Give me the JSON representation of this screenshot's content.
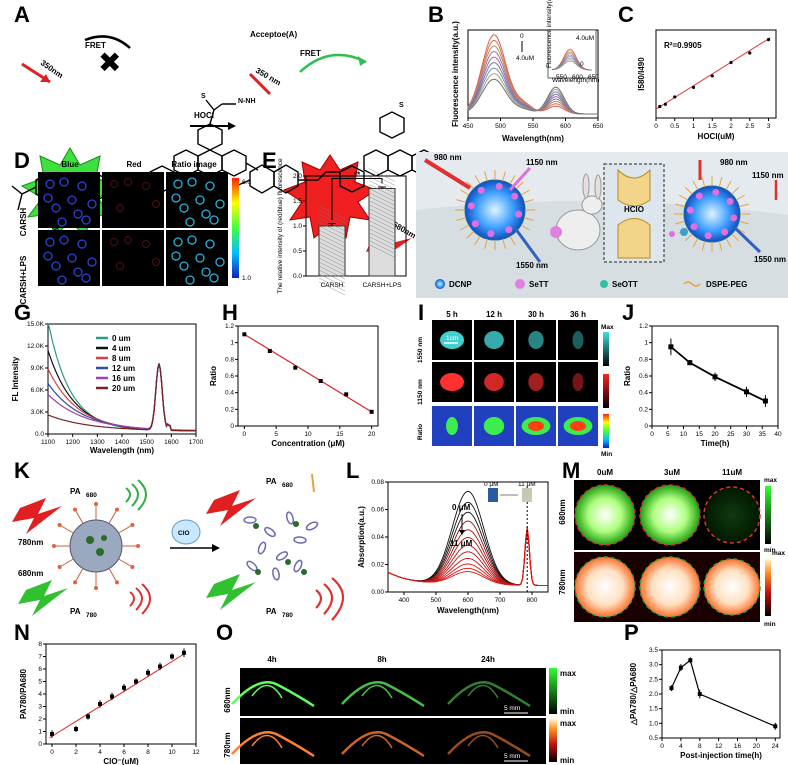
{
  "panel_labels": [
    "A",
    "B",
    "C",
    "D",
    "E",
    "F",
    "G",
    "H",
    "I",
    "J",
    "K",
    "L",
    "M",
    "N",
    "O",
    "P"
  ],
  "panelA": {
    "wl_350": "350nm",
    "fret": "FRET",
    "wl_490": "490nm",
    "hocl": "HOCl",
    "acceptor": "Acceptoe(A)",
    "wl_350b": "350 nm",
    "fret2": "FRET",
    "wl_580": "580nm"
  },
  "panelD": {
    "cols": [
      "Blue",
      "Red",
      "Ratio image"
    ],
    "rows": [
      "CARSH",
      "CARSH+LPS"
    ],
    "scale_max": "6.0",
    "scale_min": "1.0"
  },
  "panelF": {
    "wl980a": "980 nm",
    "wl1150a": "1150 nm",
    "wl1550a": "1550 nm",
    "hclo": "HClO",
    "wl980b": "980 nm",
    "wl1150b": "1150 nm",
    "wl1550b": "1550 nm",
    "legend": [
      "DCNP",
      "SeTT",
      "SeOTT",
      "DSPE-PEG"
    ]
  },
  "panelI": {
    "times": [
      "5 h",
      "12 h",
      "30 h",
      "36 h"
    ],
    "rows": [
      "1550 nm",
      "1150 nm",
      "Ratio"
    ],
    "scale": "1cm",
    "max": "Max",
    "min": "Min"
  },
  "panelK": {
    "pa680": "PA",
    "pa680sub": "680",
    "wl780": "780nm",
    "wl680": "680nm",
    "pa780": "PA",
    "pa780sub": "780",
    "clo": "ClO",
    "pa680b": "PA",
    "pa680bsub": "680",
    "pa780b": "PA",
    "pa780bsub": "780"
  },
  "panelM": {
    "cols": [
      "0uM",
      "3uM",
      "11uM"
    ],
    "rows": [
      "680nm",
      "780nm"
    ],
    "max": "max",
    "min": "min"
  },
  "panelO": {
    "cols": [
      "4h",
      "8h",
      "24h"
    ],
    "rows": [
      "680nm",
      "780nm"
    ],
    "scale": "5 mm",
    "max": "max",
    "min": "min"
  },
  "chart_data": [
    {
      "id": "B",
      "type": "line",
      "xlabel": "Wavelength(nm)",
      "ylabel": "Fluorescence intensity(a.u.)",
      "xlim": [
        450,
        650
      ],
      "xticks": [
        450,
        500,
        550,
        600,
        650
      ],
      "annot_top": "0",
      "annot_bottom": "4.0uM",
      "inset_top": "4.0uM",
      "inset_bottom": "0",
      "inset_ylabel": "Fluorescence intensity(a.u.)",
      "inset_xlabel": "Wavelength(nm)",
      "inset_xticks": [
        550,
        600,
        650
      ],
      "peaks": [
        1.0,
        0.93,
        0.86,
        0.79,
        0.72,
        0.65,
        0.58,
        0.51,
        0.44
      ],
      "colors": [
        "#e05a5a",
        "#d07a3a",
        "#b98a6a",
        "#8d7a9f",
        "#9d6b9a",
        "#7d6fa8",
        "#6f8fb0",
        "#a8a08a",
        "#6e6e6e"
      ]
    },
    {
      "id": "C",
      "type": "scatter",
      "xlabel": "HOCl(uM)",
      "ylabel": "I580/I490",
      "annotation": "R²=0.9905",
      "xlim": [
        0,
        3.2
      ],
      "ylim": [
        0.03,
        0.26
      ],
      "xticks": [
        0.0,
        0.5,
        1.0,
        1.5,
        2.0,
        2.5,
        3.0
      ],
      "x": [
        0.1,
        0.25,
        0.5,
        1.0,
        1.5,
        2.0,
        2.5,
        3.0
      ],
      "y": [
        0.06,
        0.066,
        0.085,
        0.11,
        0.14,
        0.175,
        0.2,
        0.235
      ]
    },
    {
      "id": "E",
      "type": "bar",
      "ylabel": "The relative intensity of (red/blue) fluorescence",
      "categories": [
        "CARSH",
        "CARSH+LPS"
      ],
      "values": [
        1.0,
        1.75
      ],
      "errors": [
        0.05,
        0.03
      ],
      "ylim": [
        0,
        2.0
      ],
      "yticks": [
        0.0,
        0.5,
        1.0,
        1.5,
        2.0
      ],
      "significance": "**"
    },
    {
      "id": "G",
      "type": "line",
      "xlabel": "Wavelength (nm)",
      "ylabel": "FL Intensity",
      "xlim": [
        1100,
        1700
      ],
      "xticks": [
        1100,
        1200,
        1300,
        1400,
        1500,
        1600,
        1700
      ],
      "ylim": [
        0,
        15000
      ],
      "yticks": [
        "0.0",
        "3.0K",
        "6.0K",
        "9.0K",
        "12.0K",
        "15.0K"
      ],
      "series": [
        {
          "name": "0 um",
          "color": "#2a9a8a",
          "start": 15000
        },
        {
          "name": "4 um",
          "color": "#111111",
          "start": 11000
        },
        {
          "name": "8 um",
          "color": "#d94040",
          "start": 8500
        },
        {
          "name": "12 um",
          "color": "#2a4fa0",
          "start": 6500
        },
        {
          "name": "16 um",
          "color": "#a040b0",
          "start": 5000
        },
        {
          "name": "20 um",
          "color": "#7a2222",
          "start": 2200
        }
      ]
    },
    {
      "id": "H",
      "type": "scatter",
      "xlabel": "Concentration (μM)",
      "ylabel": "Ratio",
      "xlim": [
        -1,
        21
      ],
      "ylim": [
        0,
        1.2
      ],
      "xticks": [
        0,
        5,
        10,
        15,
        20
      ],
      "yticks": [
        0.0,
        0.2,
        0.4,
        0.6,
        0.8,
        1.0,
        1.2
      ],
      "x": [
        0,
        4,
        8,
        12,
        16,
        20
      ],
      "y": [
        1.1,
        0.9,
        0.7,
        0.54,
        0.38,
        0.17
      ]
    },
    {
      "id": "J",
      "type": "line",
      "xlabel": "Time(h)",
      "ylabel": "Ratio",
      "xlim": [
        0,
        40
      ],
      "ylim": [
        0,
        1.2
      ],
      "xticks": [
        0,
        5,
        10,
        15,
        20,
        25,
        30,
        35,
        40
      ],
      "yticks": [
        0.0,
        0.2,
        0.4,
        0.6,
        0.8,
        1.0,
        1.2
      ],
      "x": [
        6,
        12,
        20,
        30,
        36
      ],
      "y": [
        0.95,
        0.76,
        0.59,
        0.41,
        0.3
      ],
      "errors": [
        0.1,
        0.03,
        0.05,
        0.06,
        0.07
      ]
    },
    {
      "id": "L",
      "type": "line",
      "xlabel": "Wavelength(nm)",
      "ylabel": "Absorption(a.u.)",
      "xlim": [
        350,
        850
      ],
      "ylim": [
        0,
        0.1
      ],
      "xticks": [
        400,
        500,
        600,
        700,
        800
      ],
      "yticks": [
        "0.00",
        "0.02",
        "0.04",
        "0.06",
        "0.08"
      ],
      "annot_top": "0 μM",
      "annot_bottom": "11 μM",
      "inset_left": "0 μM",
      "inset_right": "11 μM",
      "dashed_x": 785,
      "peaks": [
        0.085,
        0.075,
        0.066,
        0.058,
        0.05,
        0.043,
        0.036,
        0.03,
        0.024,
        0.019,
        0.015,
        0.012
      ]
    },
    {
      "id": "N",
      "type": "scatter",
      "xlabel": "ClO⁻(uM)",
      "ylabel": "PA780/PA680",
      "xlim": [
        -0.5,
        12
      ],
      "ylim": [
        0,
        8
      ],
      "xticks": [
        0,
        2,
        4,
        6,
        8,
        10,
        12
      ],
      "yticks": [
        0,
        1,
        2,
        3,
        4,
        5,
        6,
        7,
        8
      ],
      "x": [
        0,
        2,
        3,
        4,
        5,
        6,
        7,
        8,
        9,
        10,
        11
      ],
      "y": [
        0.8,
        1.2,
        2.2,
        3.2,
        3.8,
        4.5,
        5.0,
        5.7,
        6.2,
        7.0,
        7.3
      ],
      "errors": [
        0.3,
        0.25,
        0.25,
        0.3,
        0.3,
        0.3,
        0.25,
        0.3,
        0.3,
        0.25,
        0.35
      ]
    },
    {
      "id": "P",
      "type": "line",
      "xlabel": "Post-injection time(h)",
      "ylabel": "△PA780/△PA680",
      "xlim": [
        0,
        25
      ],
      "ylim": [
        0.5,
        3.5
      ],
      "xticks": [
        0,
        4,
        8,
        12,
        16,
        20,
        24
      ],
      "yticks": [
        "0.5",
        "1.0",
        "1.5",
        "2.0",
        "2.5",
        "3.0",
        "3.5"
      ],
      "x": [
        2,
        4,
        6,
        8,
        24
      ],
      "y": [
        2.2,
        2.9,
        3.15,
        2.0,
        0.9
      ],
      "errors": [
        0.1,
        0.12,
        0.1,
        0.15,
        0.12
      ]
    }
  ]
}
